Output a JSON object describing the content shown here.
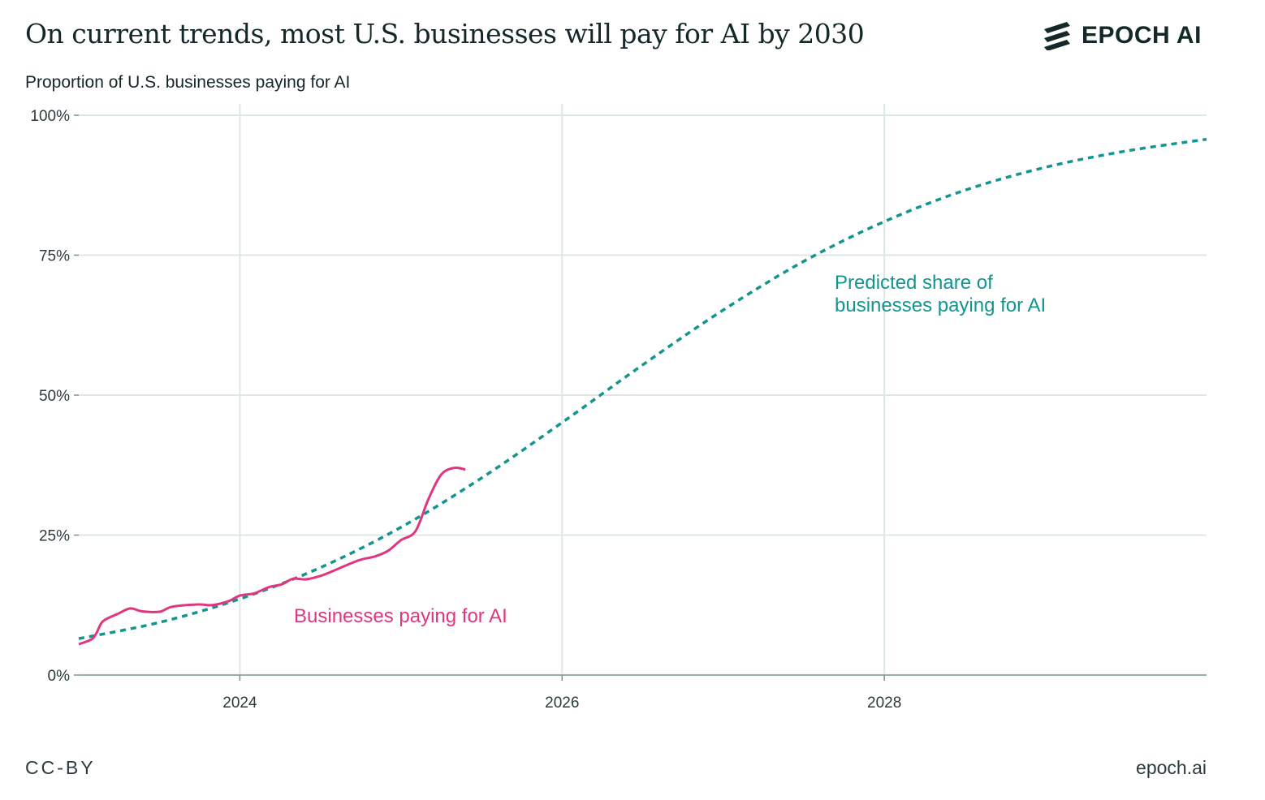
{
  "header": {
    "title": "On current trends, most U.S. businesses will pay for AI by 2030",
    "logo_text": "EPOCH AI"
  },
  "footer": {
    "license": "CC-BY",
    "site": "epoch.ai"
  },
  "colors": {
    "observed": "#e0357f",
    "predicted": "#13958f",
    "grid": "#dde7e7",
    "axis": "#7f8f90"
  },
  "chart_data": {
    "type": "line",
    "title": "On current trends, most U.S. businesses will pay for AI by 2030",
    "ylabel": "Proportion of U.S. businesses paying for AI",
    "xlabel": "",
    "xlim": [
      2023.0,
      2030.0
    ],
    "ylim": [
      0,
      100
    ],
    "xticks": [
      2024,
      2026,
      2028
    ],
    "xtick_labels": [
      "2024",
      "2026",
      "2028"
    ],
    "yticks": [
      0,
      25,
      50,
      75,
      100
    ],
    "ytick_labels": [
      "0%",
      "25%",
      "50%",
      "75%",
      "100%"
    ],
    "grid": true,
    "series": [
      {
        "name": "Businesses paying for AI",
        "style": "solid",
        "x": [
          2023.0,
          2023.08,
          2023.11,
          2023.15,
          2023.24,
          2023.32,
          2023.39,
          2023.5,
          2023.58,
          2023.74,
          2023.83,
          2023.93,
          2024.0,
          2024.09,
          2024.18,
          2024.26,
          2024.33,
          2024.41,
          2024.5,
          2024.58,
          2024.66,
          2024.75,
          2024.84,
          2024.92,
          2025.0,
          2025.09,
          2025.17,
          2025.25,
          2025.33,
          2025.4
        ],
        "y": [
          5.5,
          6.4,
          7.5,
          9.6,
          10.9,
          11.9,
          11.4,
          11.3,
          12.2,
          12.6,
          12.5,
          13.2,
          14.2,
          14.6,
          15.7,
          16.2,
          17.2,
          17.1,
          17.7,
          18.6,
          19.6,
          20.6,
          21.2,
          22.2,
          24.1,
          25.7,
          31.4,
          35.8,
          37.0,
          36.7
        ]
      },
      {
        "name": "Predicted share of businesses paying for AI",
        "style": "dotted",
        "x": [
          2023.0,
          2023.5,
          2024.0,
          2024.5,
          2025.0,
          2025.5,
          2026.0,
          2026.5,
          2027.0,
          2027.5,
          2028.0,
          2028.5,
          2029.0,
          2029.5,
          2030.0
        ],
        "y": [
          6.5,
          9.4,
          13.6,
          19.2,
          26.4,
          35.2,
          45.1,
          55.4,
          65.2,
          73.9,
          81.0,
          86.6,
          90.7,
          93.6,
          95.7
        ]
      }
    ],
    "annotations": [
      {
        "text": "Businesses paying for AI",
        "series": 0
      },
      {
        "text_lines": [
          "Predicted share of",
          "businesses paying for AI"
        ],
        "series": 1
      }
    ]
  }
}
